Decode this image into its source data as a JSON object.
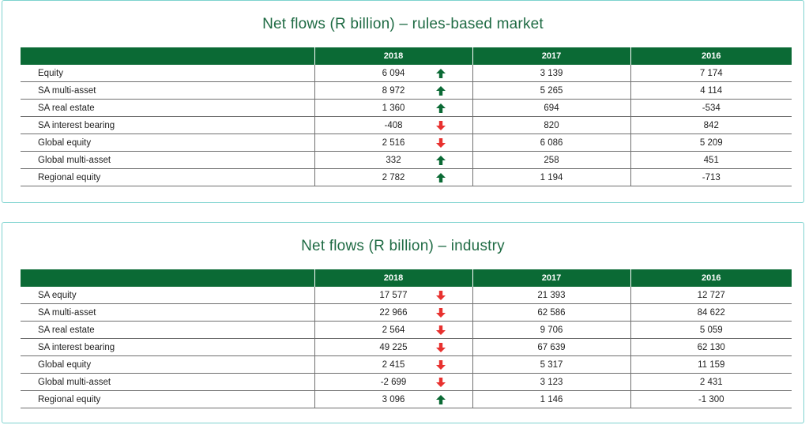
{
  "panels": [
    {
      "title": "Net flows (R billion) – rules-based market",
      "headers": [
        "",
        "2018",
        "2017",
        "2016"
      ],
      "rows": [
        {
          "label": "Equity",
          "y2018": "6 094",
          "trend": "up",
          "y2017": "3 139",
          "y2016": "7 174"
        },
        {
          "label": "SA multi-asset",
          "y2018": "8 972",
          "trend": "up",
          "y2017": "5 265",
          "y2016": "4 114"
        },
        {
          "label": "SA real estate",
          "y2018": "1 360",
          "trend": "up",
          "y2017": "694",
          "y2016": "-534"
        },
        {
          "label": "SA interest bearing",
          "y2018": "-408",
          "trend": "down",
          "y2017": "820",
          "y2016": "842"
        },
        {
          "label": "Global equity",
          "y2018": "2 516",
          "trend": "down",
          "y2017": "6 086",
          "y2016": "5 209"
        },
        {
          "label": "Global multi-asset",
          "y2018": "332",
          "trend": "up",
          "y2017": "258",
          "y2016": "451"
        },
        {
          "label": "Regional equity",
          "y2018": "2 782",
          "trend": "up",
          "y2017": "1 194",
          "y2016": "-713"
        }
      ]
    },
    {
      "title": "Net flows (R billion) – industry",
      "headers": [
        "",
        "2018",
        "2017",
        "2016"
      ],
      "rows": [
        {
          "label": "SA equity",
          "y2018": "17 577",
          "trend": "down",
          "y2017": "21 393",
          "y2016": "12 727"
        },
        {
          "label": "SA multi-asset",
          "y2018": "22 966",
          "trend": "down",
          "y2017": "62 586",
          "y2016": "84 622"
        },
        {
          "label": "SA real estate",
          "y2018": "2 564",
          "trend": "down",
          "y2017": "9 706",
          "y2016": "5 059"
        },
        {
          "label": "SA interest bearing",
          "y2018": "49 225",
          "trend": "down",
          "y2017": "67 639",
          "y2016": "62 130"
        },
        {
          "label": "Global equity",
          "y2018": "2 415",
          "trend": "down",
          "y2017": "5 317",
          "y2016": "11 159"
        },
        {
          "label": "Global multi-asset",
          "y2018": "-2 699",
          "trend": "down",
          "y2017": "3 123",
          "y2016": "2 431"
        },
        {
          "label": "Regional equity",
          "y2018": "3 096",
          "trend": "up",
          "y2017": "1 146",
          "y2016": "-1 300"
        }
      ]
    }
  ],
  "icons": {
    "up": "arrow-up-icon",
    "down": "arrow-down-icon"
  },
  "colors": {
    "header_bg": "#0b6a35",
    "title": "#1f6b44",
    "up": "#0b6a35",
    "down": "#e8312f",
    "border": "#7ed3cf"
  }
}
